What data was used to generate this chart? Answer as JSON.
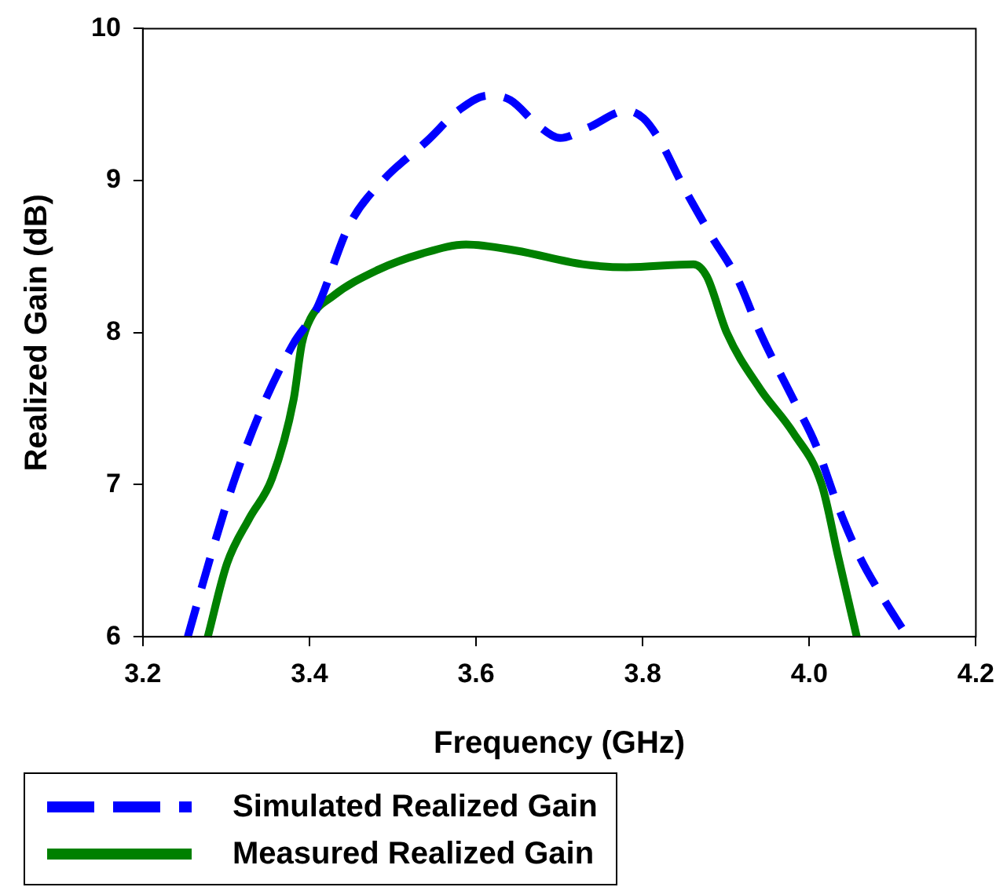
{
  "chart_data": {
    "type": "line",
    "xlabel": "Frequency (GHz)",
    "ylabel": "Realized Gain (dB)",
    "xlim": [
      3.2,
      4.2
    ],
    "xticks": [
      {
        "value": 3.2,
        "label": "3.2"
      },
      {
        "value": 3.4,
        "label": "3.4"
      },
      {
        "value": 3.6,
        "label": "3.6"
      },
      {
        "value": 3.8,
        "label": "3.8"
      },
      {
        "value": 4.0,
        "label": "4.0"
      },
      {
        "value": 4.2,
        "label": "4.2"
      }
    ],
    "ylim": [
      6,
      10
    ],
    "yticks": [
      6,
      7,
      8,
      9,
      10
    ],
    "grid": false,
    "legend": "bottom left",
    "marker": "none",
    "series": [
      {
        "name": "Simulated Realized Gain",
        "color": "#0000ff",
        "line_style": "dashed",
        "x": [
          3.254,
          3.281,
          3.308,
          3.341,
          3.381,
          3.408,
          3.448,
          3.488,
          3.541,
          3.581,
          3.615,
          3.641,
          3.675,
          3.701,
          3.735,
          3.781,
          3.801,
          3.821,
          3.848,
          3.881,
          3.915,
          3.941,
          3.981,
          4.008,
          4.035,
          4.061,
          4.088,
          4.118
        ],
        "values": [
          6.0,
          6.52,
          7.0,
          7.48,
          7.93,
          8.15,
          8.71,
          9.0,
          9.26,
          9.47,
          9.56,
          9.53,
          9.36,
          9.28,
          9.35,
          9.46,
          9.41,
          9.26,
          8.97,
          8.65,
          8.34,
          8.0,
          7.56,
          7.26,
          6.85,
          6.52,
          6.26,
          6.0
        ]
      },
      {
        "name": "Measured Realized Gain",
        "color": "#008000",
        "line_style": "solid",
        "x": [
          3.278,
          3.301,
          3.328,
          3.355,
          3.381,
          3.391,
          3.401,
          3.428,
          3.481,
          3.535,
          3.588,
          3.648,
          3.728,
          3.781,
          3.861,
          3.877,
          3.901,
          3.941,
          3.981,
          4.015,
          4.035,
          4.057
        ],
        "values": [
          6.0,
          6.48,
          6.78,
          7.04,
          7.56,
          7.93,
          8.09,
          8.24,
          8.41,
          8.52,
          8.58,
          8.54,
          8.45,
          8.43,
          8.45,
          8.37,
          8.0,
          7.63,
          7.34,
          7.0,
          6.52,
          6.0
        ]
      }
    ]
  }
}
